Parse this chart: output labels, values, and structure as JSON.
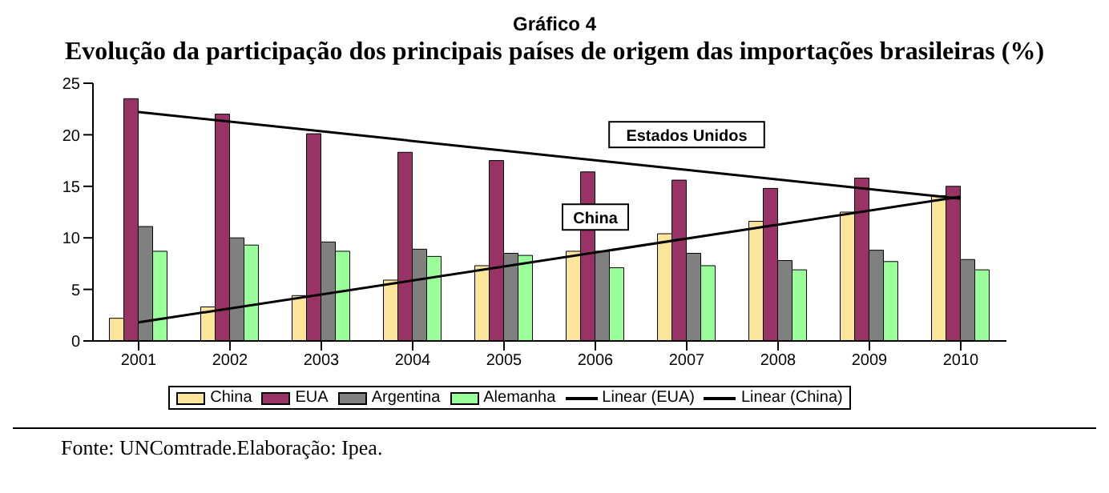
{
  "chart_data": {
    "type": "bar",
    "title": "Gráfico 4",
    "subtitle": "Evolução da participação dos principais países de origem das importações brasileiras (%)",
    "categories": [
      "2001",
      "2002",
      "2003",
      "2004",
      "2005",
      "2006",
      "2007",
      "2008",
      "2009",
      "2010"
    ],
    "series": [
      {
        "name": "China",
        "color": "#fbe59a",
        "values": [
          2.2,
          3.3,
          4.4,
          5.9,
          7.3,
          8.7,
          10.4,
          11.6,
          12.5,
          14.1
        ]
      },
      {
        "name": "EUA",
        "color": "#993366",
        "values": [
          23.5,
          22.0,
          20.1,
          18.3,
          17.5,
          16.4,
          15.6,
          14.8,
          15.8,
          15.0
        ]
      },
      {
        "name": "Argentina",
        "color": "#808080",
        "values": [
          11.1,
          10.0,
          9.6,
          8.9,
          8.5,
          8.7,
          8.5,
          7.8,
          8.8,
          7.9
        ]
      },
      {
        "name": "Alemanha",
        "color": "#99ff99",
        "values": [
          8.7,
          9.3,
          8.7,
          8.2,
          8.3,
          7.1,
          7.3,
          6.9,
          7.7,
          6.9
        ]
      },
      {
        "name": "Linear (EUA)",
        "type": "line",
        "color": "#000000",
        "values": [
          22.2,
          null,
          null,
          null,
          null,
          null,
          null,
          null,
          null,
          13.8
        ]
      },
      {
        "name": "Linear (China)",
        "type": "line",
        "color": "#000000",
        "values": [
          1.8,
          null,
          null,
          null,
          null,
          null,
          null,
          null,
          null,
          14.0
        ]
      }
    ],
    "ylim": [
      0,
      25
    ],
    "yticks": [
      0,
      5,
      10,
      15,
      20,
      25
    ],
    "grid": false,
    "legend": "bottom",
    "annotations": [
      {
        "text": "Estados Unidos",
        "x": "2007",
        "y": 16.6
      },
      {
        "text": "China",
        "x": "2006",
        "y": 8.6
      },
      "Fonte: UNComtrade.Elaboração: Ipea."
    ]
  }
}
